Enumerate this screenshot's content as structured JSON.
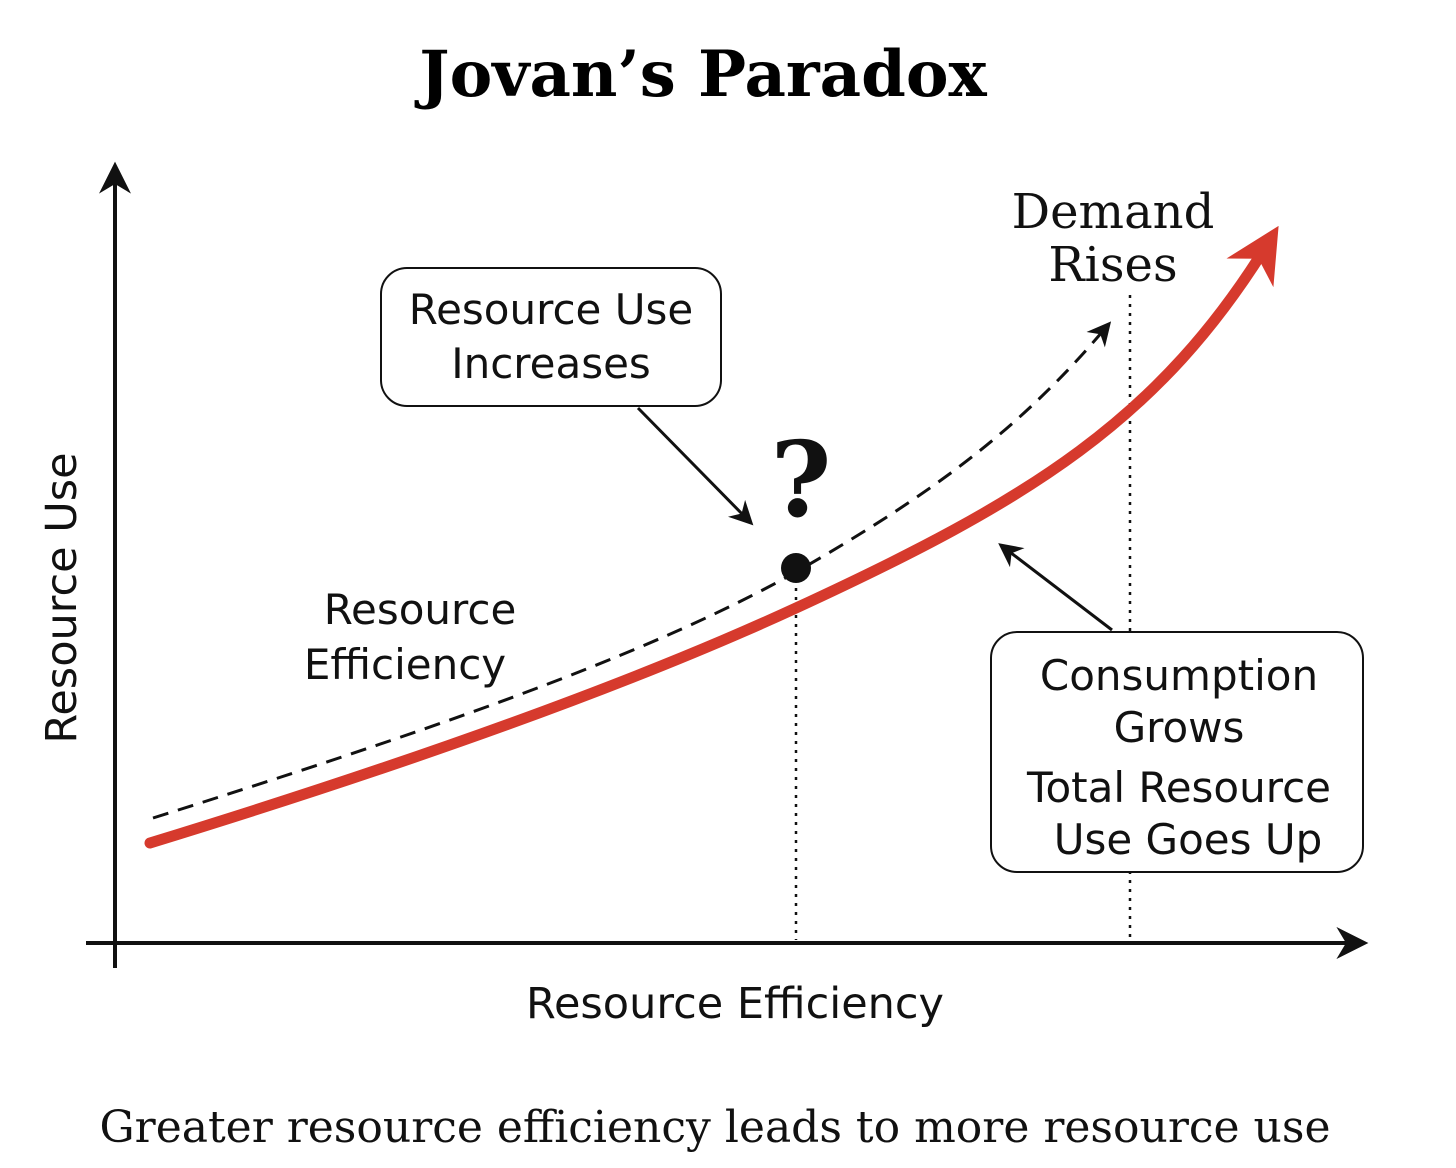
{
  "title": "Jovan’s Paradox",
  "caption": "Greater resource efficiency leads to more resource use",
  "axes": {
    "x_label": "Resource Efficiency",
    "y_label": "Resource Use"
  },
  "annotations": {
    "demand_rises": [
      "Demand",
      "Rises"
    ],
    "resource_use_increases": [
      "Resource Use",
      "Increases"
    ],
    "resource_efficiency": [
      "Resource",
      "Efficiency"
    ],
    "question_mark": "?",
    "consumption_grows": [
      "Consumption",
      "Grows"
    ],
    "total_resource_use": [
      "Total Resource",
      "Use Goes Up"
    ]
  },
  "colors": {
    "main_curve": "#d63a2d",
    "ink": "#111111",
    "background": "#ffffff"
  }
}
